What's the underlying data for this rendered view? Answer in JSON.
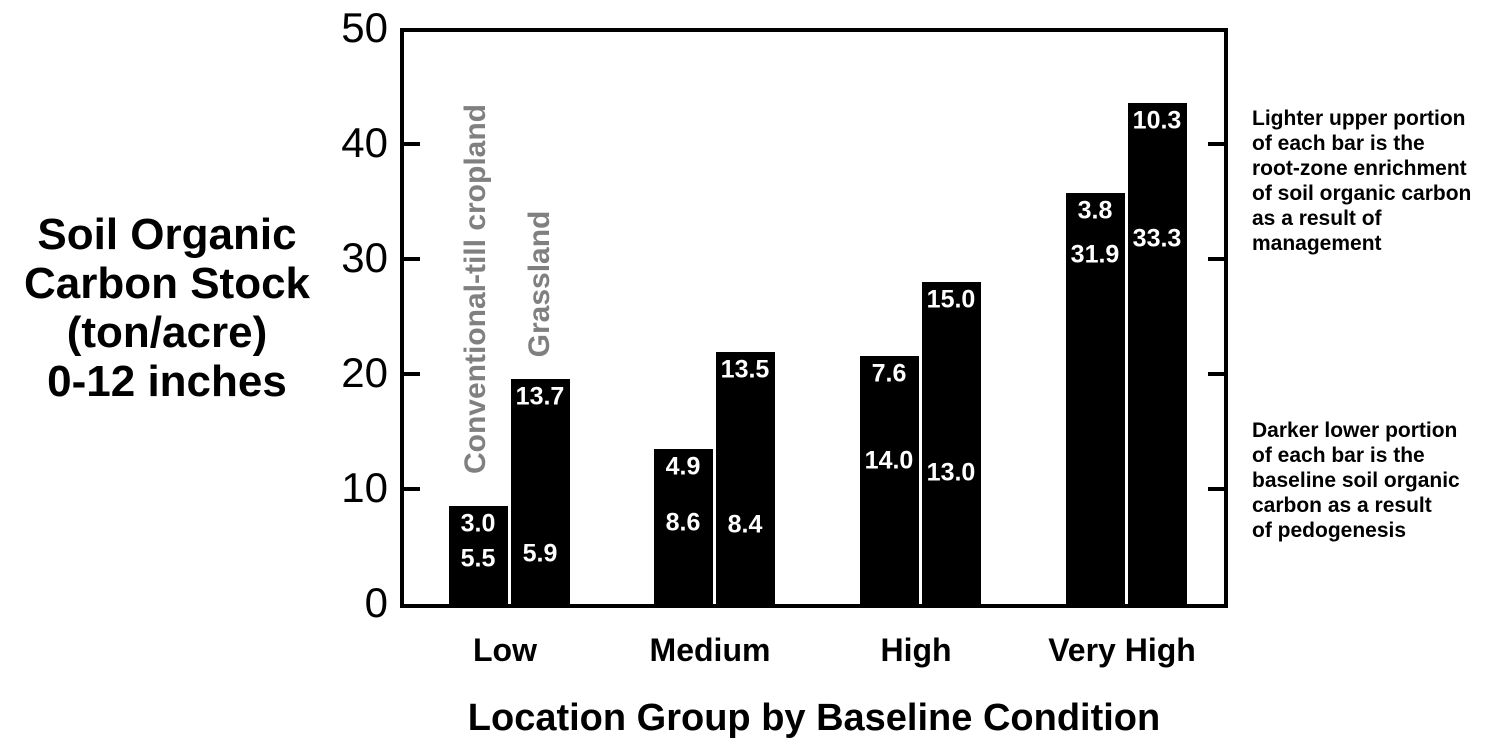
{
  "figure": {
    "background": "#ffffff",
    "y_axis_title": "Soil Organic\nCarbon Stock\n(ton/acre)\n0-12 inches",
    "x_axis_title": "Location Group by Baseline Condition",
    "annotations": {
      "upper": "Lighter upper portion\nof each bar is the\nroot-zone enrichment\nof soil organic carbon\nas a result of\nmanagement",
      "lower": "Darker lower portion\nof each bar is the\nbaseline soil organic\ncarbon as a result\nof pedogenesis"
    },
    "colors": {
      "bar": "#000000",
      "bar_value_text": "#ffffff",
      "series_label": "#808080",
      "axis": "#000000",
      "text": "#000000"
    }
  },
  "chart_data": {
    "type": "bar",
    "stacked": true,
    "title": "",
    "xlabel": "Location Group by Baseline Condition",
    "ylabel": "Soil Organic Carbon Stock (ton/acre) 0-12 inches",
    "ylim": [
      0,
      50
    ],
    "yticks": [
      0,
      10,
      20,
      30,
      40,
      50
    ],
    "grid": false,
    "categories": [
      "Low",
      "Medium",
      "High",
      "Very High"
    ],
    "series": [
      {
        "name": "Conventional-till cropland",
        "baseline_pedogenesis": [
          5.5,
          8.6,
          14.0,
          31.9
        ],
        "rootzone_enrichment": [
          3.0,
          4.9,
          7.6,
          3.8
        ],
        "totals": [
          8.5,
          13.5,
          21.6,
          35.7
        ]
      },
      {
        "name": "Grassland",
        "baseline_pedogenesis": [
          5.9,
          8.4,
          13.0,
          33.3
        ],
        "rootzone_enrichment": [
          13.7,
          13.5,
          15.0,
          10.3
        ],
        "totals": [
          19.6,
          21.9,
          28.0,
          43.6
        ]
      }
    ],
    "legend_position": "rotated series labels above first group"
  }
}
